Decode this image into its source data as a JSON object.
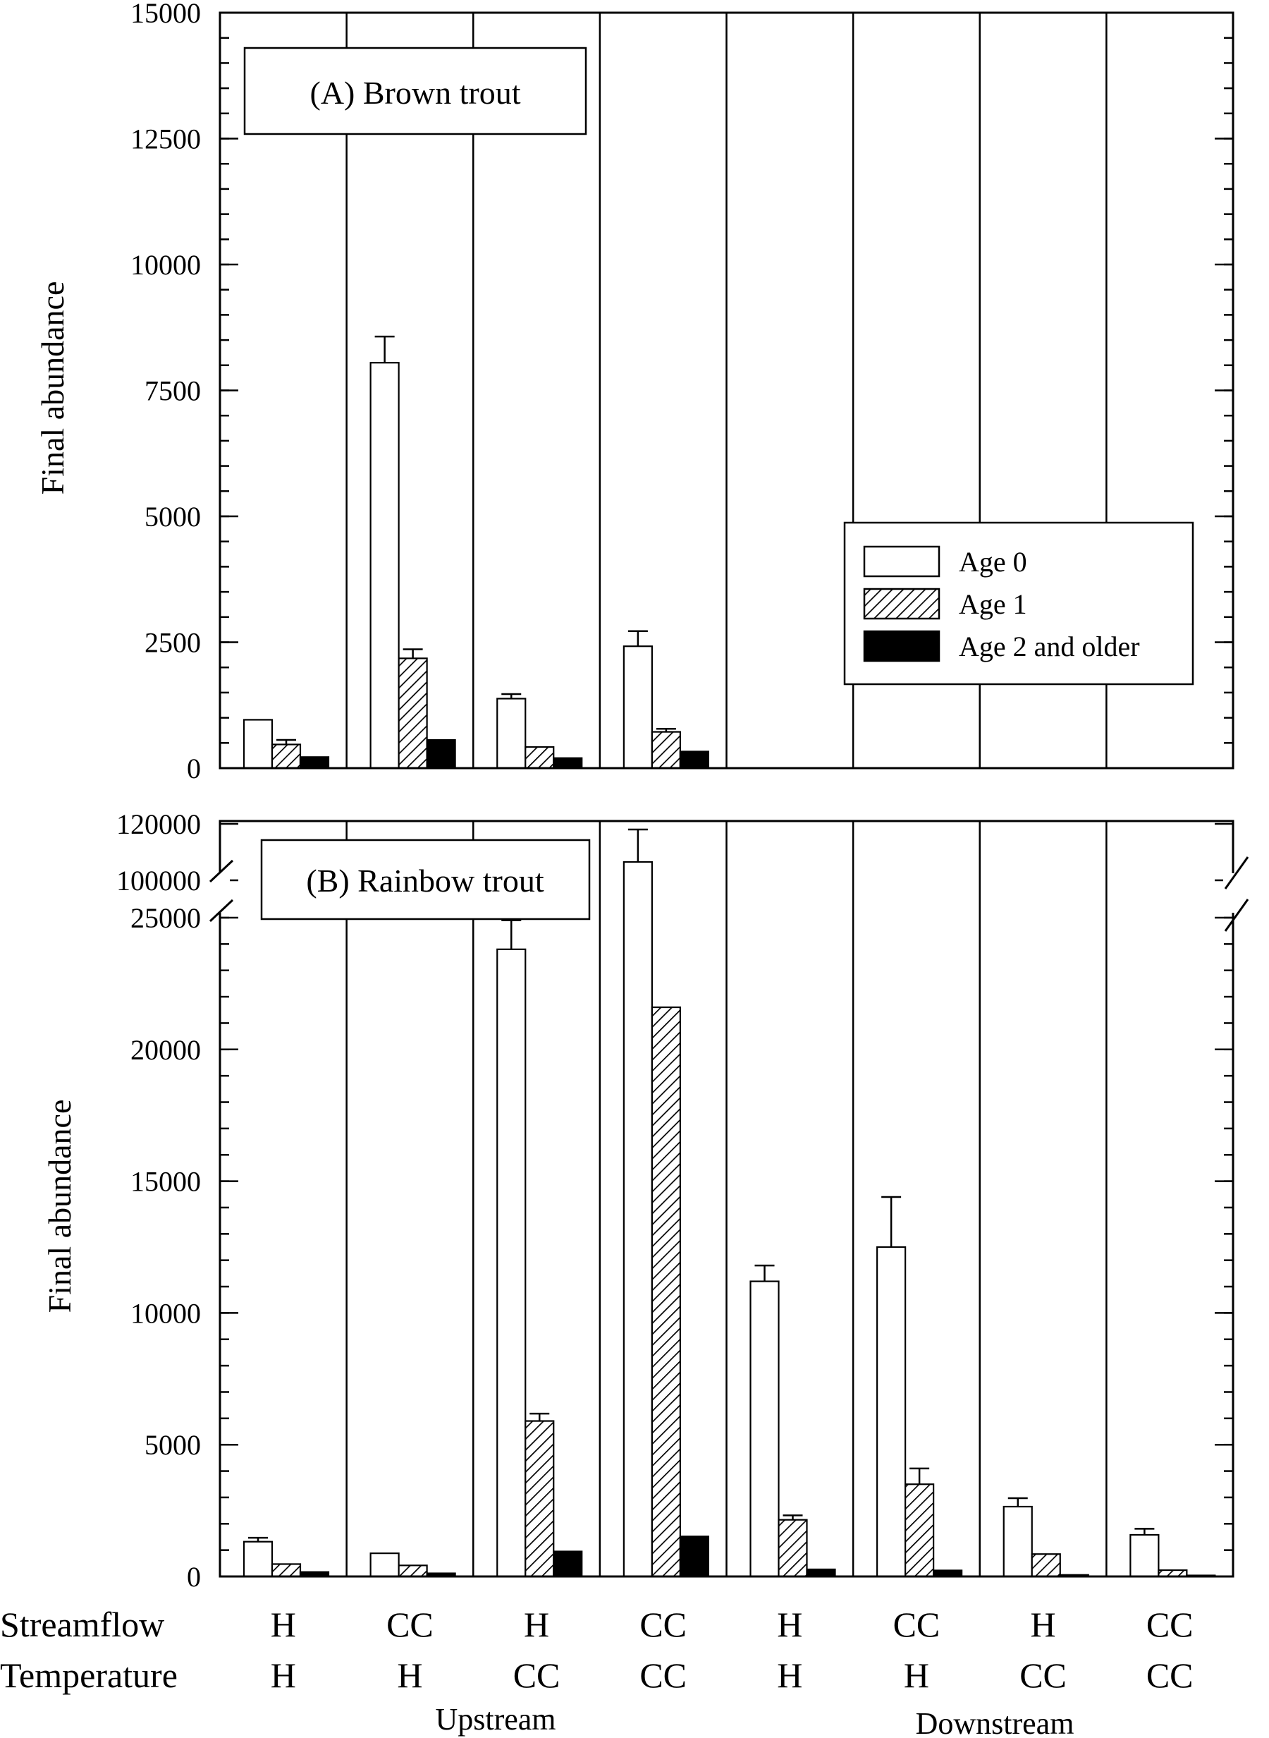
{
  "colors": {
    "axis": "#000000",
    "age0": "#ffffff",
    "age1_hatch": "#000000",
    "age2": "#000000",
    "background": "#ffffff"
  },
  "chart_data": [
    {
      "type": "bar",
      "panel_label": "(A) Brown trout",
      "ylabel": "Final abundance",
      "ylim": [
        0,
        15000
      ],
      "yticks": [
        "0",
        "2500",
        "5000",
        "7500",
        "10000",
        "12500",
        "15000"
      ],
      "yminor_step": 500,
      "legend": {
        "placement": "right-middle",
        "entries": [
          "Age 0",
          "Age 1",
          "Age 2 and older"
        ]
      },
      "series": [
        {
          "name": "Age 0",
          "fill": "white",
          "values": [
            960,
            8050,
            1380,
            2420,
            0,
            0,
            0,
            0
          ],
          "errors": [
            0,
            520,
            90,
            300,
            0,
            0,
            0,
            0
          ]
        },
        {
          "name": "Age 1",
          "fill": "hatch",
          "values": [
            470,
            2180,
            420,
            720,
            0,
            0,
            0,
            0
          ],
          "errors": [
            90,
            180,
            0,
            60,
            0,
            0,
            0,
            0
          ]
        },
        {
          "name": "Age 2 and older",
          "fill": "black",
          "values": [
            220,
            560,
            200,
            330,
            0,
            0,
            0,
            0
          ],
          "errors": [
            0,
            0,
            0,
            0,
            0,
            0,
            0,
            0
          ]
        }
      ]
    },
    {
      "type": "bar",
      "panel_label": "(B) Rainbow trout",
      "ylabel": "Final abundance",
      "ylim": [
        0,
        25000
      ],
      "yticks": [
        "0",
        "5000",
        "10000",
        "15000",
        "20000",
        "25000"
      ],
      "yminor_step": 1000,
      "axis_break": {
        "lower_max": 25000,
        "upper_range": [
          100000,
          120000
        ],
        "upper_ticks": [
          "100000",
          "120000"
        ]
      },
      "series": [
        {
          "name": "Age 0",
          "fill": "white",
          "values": [
            1320,
            880,
            23800,
            106500,
            11200,
            12500,
            2650,
            1580
          ],
          "errors": [
            150,
            0,
            1100,
            11500,
            600,
            1900,
            320,
            230
          ]
        },
        {
          "name": "Age 1",
          "fill": "hatch",
          "values": [
            470,
            420,
            5900,
            21600,
            2150,
            3500,
            850,
            240
          ],
          "errors": [
            0,
            0,
            280,
            0,
            170,
            600,
            0,
            0
          ]
        },
        {
          "name": "Age 2 and older",
          "fill": "black",
          "values": [
            170,
            120,
            950,
            1520,
            270,
            230,
            60,
            40
          ],
          "errors": [
            0,
            0,
            0,
            0,
            0,
            0,
            0,
            0
          ]
        }
      ]
    }
  ],
  "xaxis": {
    "row_labels": [
      "Streamflow",
      "Temperature"
    ],
    "streamflow": [
      "H",
      "CC",
      "H",
      "CC",
      "H",
      "CC",
      "H",
      "CC"
    ],
    "temperature": [
      "H",
      "H",
      "CC",
      "CC",
      "H",
      "H",
      "CC",
      "CC"
    ],
    "groups": [
      "Upstream",
      "Downstream"
    ]
  }
}
